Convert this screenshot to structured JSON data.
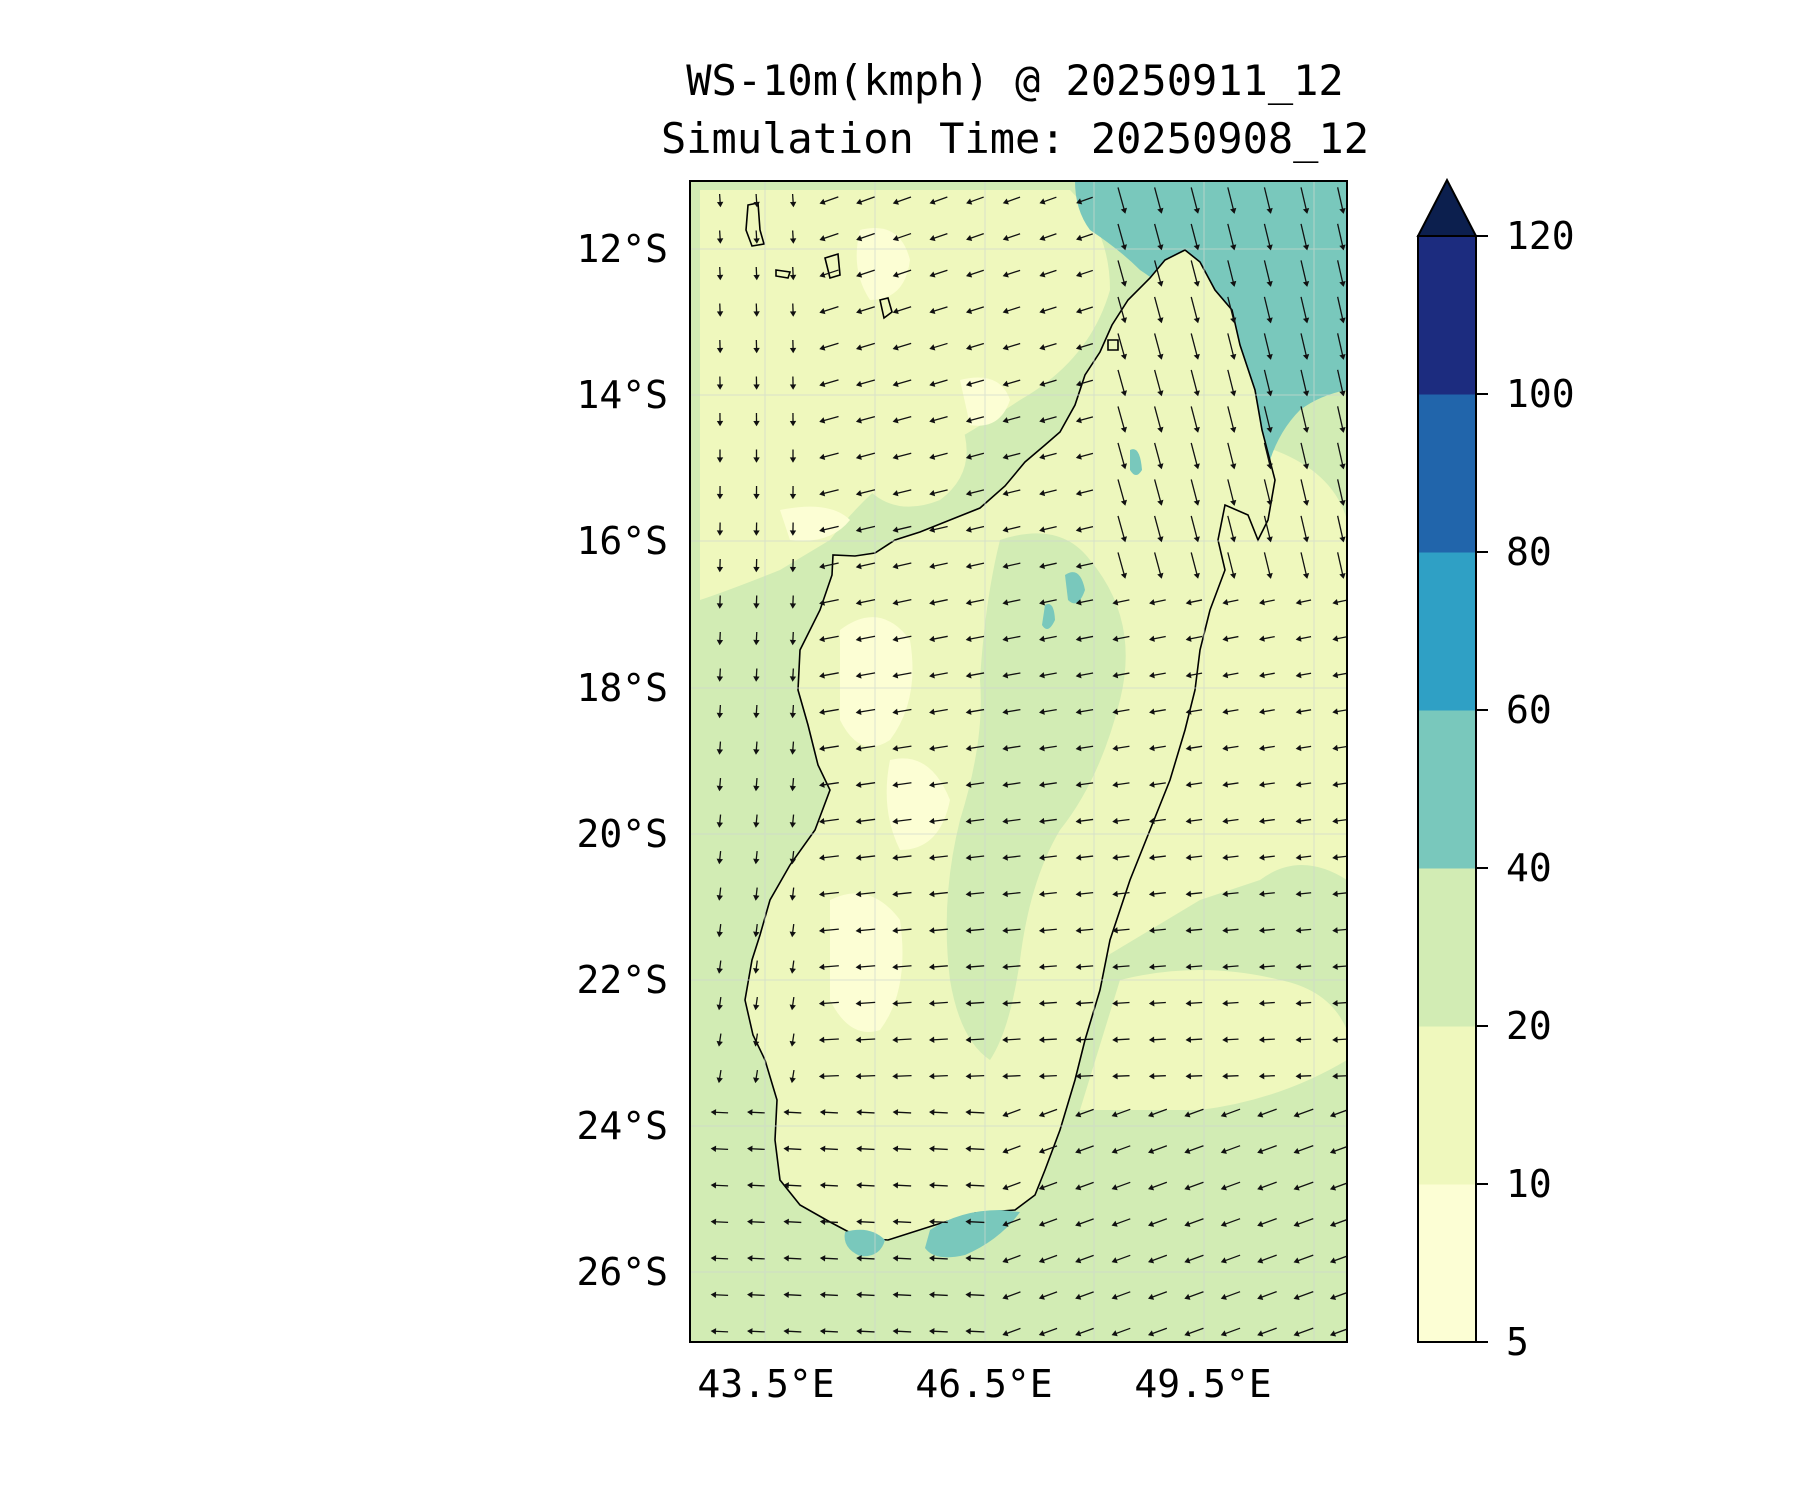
{
  "title": "WS-10m(kmph) @ 20250911_12",
  "subtitle": "Simulation Time: 20250908_12",
  "map": {
    "lat_labels": [
      "12°S",
      "14°S",
      "16°S",
      "18°S",
      "20°S",
      "22°S",
      "24°S",
      "26°S"
    ],
    "lon_labels": [
      "43.5°E",
      "46.5°E",
      "49.5°E"
    ],
    "land_color": "#edf7bd",
    "ocean_color": "#d2ecb4"
  },
  "colorbar": {
    "unit": "kmph",
    "levels": [
      "5",
      "10",
      "20",
      "40",
      "60",
      "80",
      "100",
      "120"
    ],
    "colors": [
      "#fcfed4",
      "#eff8bd",
      "#d2ecb4",
      "#79c8bc",
      "#2fa0c5",
      "#2165ab",
      "#1c2c7f",
      "#0c1f4e"
    ],
    "extend": "max"
  }
}
